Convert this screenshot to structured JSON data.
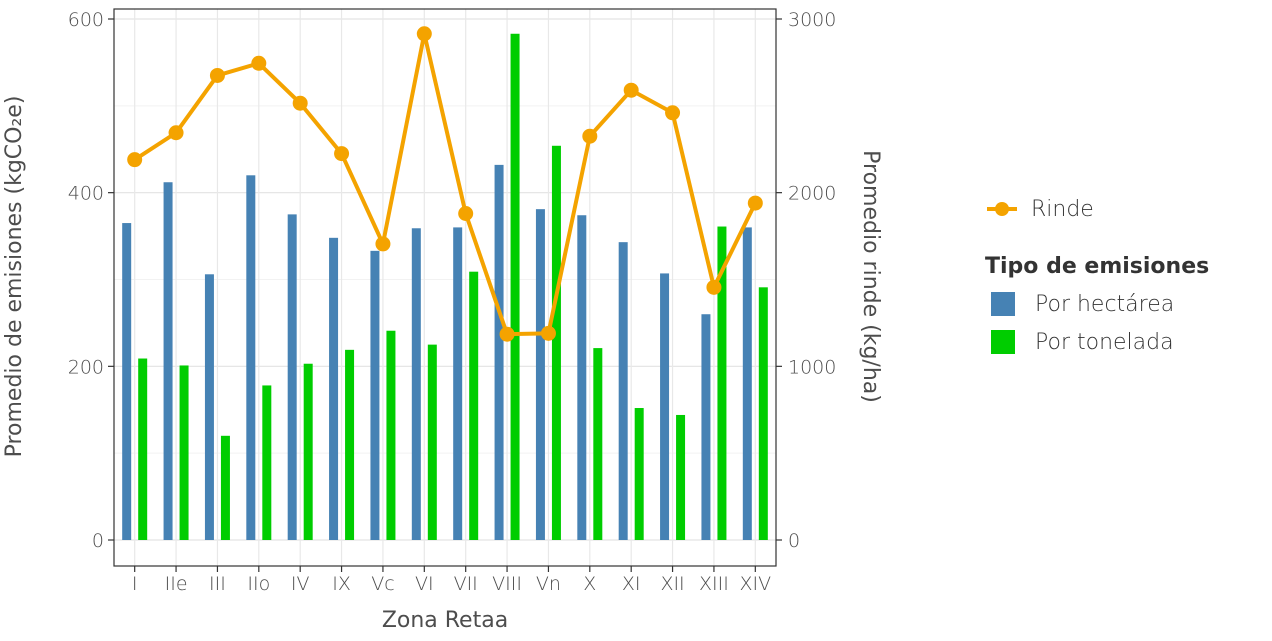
{
  "chart_data": {
    "type": "bar",
    "xlabel": "Zona Retaa",
    "ylabel": "Promedio de emisiones (kgCO₂e)",
    "y2label": "Promedio rinde (kg/ha)",
    "categories": [
      "I",
      "IIe",
      "III",
      "IIo",
      "IV",
      "IX",
      "Vc",
      "VI",
      "VII",
      "VIII",
      "Vn",
      "X",
      "XI",
      "XII",
      "XIII",
      "XIV"
    ],
    "ylim": [
      0,
      600
    ],
    "y2lim": [
      0,
      3000
    ],
    "yticks": [
      "0",
      "200",
      "400",
      "600"
    ],
    "y2ticks": [
      "0",
      "1000",
      "2000",
      "3000"
    ],
    "series": [
      {
        "name": "Por hectárea",
        "axis": "left",
        "type": "bar",
        "color": "#4682b4",
        "values": [
          365,
          412,
          306,
          420,
          375,
          348,
          333,
          359,
          360,
          432,
          381,
          374,
          343,
          307,
          260,
          360
        ]
      },
      {
        "name": "Por tonelada",
        "axis": "left",
        "type": "bar",
        "color": "#00cd00",
        "values": [
          209,
          201,
          120,
          178,
          203,
          219,
          241,
          225,
          309,
          583,
          454,
          221,
          152,
          144,
          361,
          291
        ]
      },
      {
        "name": "Rinde",
        "axis": "right",
        "type": "line",
        "color": "#f4a300",
        "values": [
          2190,
          2345,
          2675,
          2745,
          2515,
          2225,
          1705,
          2915,
          1880,
          1185,
          1190,
          2325,
          2590,
          2460,
          1455,
          1940
        ]
      }
    ],
    "grid": true,
    "legend": {
      "position": "right",
      "line_entry": "Rinde",
      "title": "Tipo de emisiones",
      "entries": [
        "Por hectárea",
        "Por tonelada"
      ]
    }
  }
}
